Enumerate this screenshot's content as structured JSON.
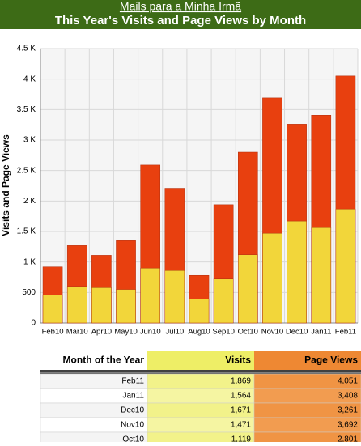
{
  "header": {
    "link": "Mails para a Minha Irmã"
  },
  "chart_data": {
    "type": "bar",
    "title": "This Year's Visits and Page Views by Month",
    "y_label": "Visits and Page Views",
    "categories": [
      "Feb10",
      "Mar10",
      "Apr10",
      "May10",
      "Jun10",
      "Jul10",
      "Aug10",
      "Sep10",
      "Oct10",
      "Nov10",
      "Dec10",
      "Jan11",
      "Feb11"
    ],
    "series": [
      {
        "name": "Page Views",
        "color": "#e8400f",
        "values": [
          920,
          1270,
          1110,
          1350,
          2590,
          2210,
          780,
          1940,
          2801,
          3692,
          3261,
          3408,
          4051
        ]
      },
      {
        "name": "Visits",
        "color": "#f2d63a",
        "values": [
          460,
          600,
          580,
          550,
          900,
          860,
          390,
          720,
          1119,
          1471,
          1671,
          1564,
          1869
        ]
      }
    ],
    "ylim": [
      0,
      4500
    ],
    "yticks": [
      0,
      500,
      {
        "value": 1000,
        "label": "1 K"
      },
      {
        "value": 1500,
        "label": "1.5 K"
      },
      {
        "value": 2000,
        "label": "2 K"
      },
      {
        "value": 2500,
        "label": "2.5 K"
      },
      {
        "value": 3000,
        "label": "3 K"
      },
      {
        "value": 3500,
        "label": "3.5 K"
      },
      {
        "value": 4000,
        "label": "4 K"
      },
      {
        "value": 4500,
        "label": "4.5 K"
      }
    ],
    "grid": true
  },
  "table": {
    "header": "Month of the Year",
    "rows": [
      [
        "Feb11",
        "1,869",
        "4,051"
      ],
      [
        "Jan11",
        "1,564",
        "3,408"
      ],
      [
        "Dec10",
        "1,671",
        "3,261"
      ],
      [
        "Nov10",
        "1,471",
        "3,692"
      ],
      [
        "Oct10",
        "1,119",
        "2,801"
      ]
    ]
  }
}
